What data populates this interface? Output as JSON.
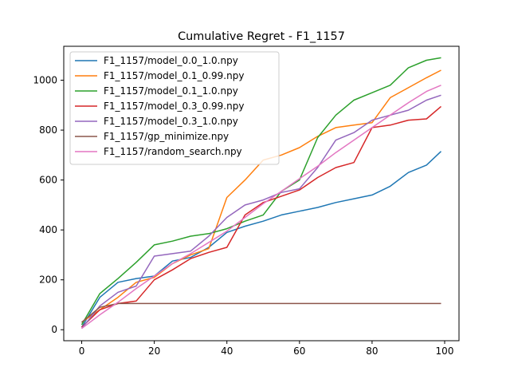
{
  "chart_data": {
    "type": "line",
    "title": "Cumulative Regret - F1_1157",
    "xlabel": "",
    "ylabel": "",
    "xlim": [
      -4.95,
      103.95
    ],
    "ylim": [
      -44,
      1136
    ],
    "xticks": [
      0,
      20,
      40,
      60,
      80,
      100
    ],
    "yticks": [
      0,
      200,
      400,
      600,
      800,
      1000
    ],
    "legend_position": "upper left",
    "grid": false,
    "x": [
      0,
      5,
      10,
      15,
      20,
      25,
      30,
      35,
      40,
      45,
      50,
      55,
      60,
      65,
      70,
      75,
      80,
      85,
      90,
      95,
      99
    ],
    "series": [
      {
        "name": "F1_1157/model_0.0_1.0.npy",
        "color": "#1f77b4",
        "values": [
          10,
          130,
          190,
          205,
          215,
          275,
          290,
          330,
          390,
          415,
          435,
          460,
          475,
          490,
          510,
          525,
          540,
          575,
          630,
          660,
          715
        ]
      },
      {
        "name": "F1_1157/model_0.1_0.99.npy",
        "color": "#ff7f0e",
        "values": [
          30,
          80,
          130,
          190,
          210,
          265,
          300,
          325,
          530,
          600,
          680,
          700,
          730,
          775,
          810,
          820,
          830,
          930,
          970,
          1010,
          1040
        ]
      },
      {
        "name": "F1_1157/model_0.1_1.0.npy",
        "color": "#2ca02c",
        "values": [
          20,
          145,
          205,
          270,
          340,
          355,
          375,
          385,
          405,
          435,
          460,
          555,
          600,
          770,
          860,
          920,
          950,
          980,
          1050,
          1080,
          1090
        ]
      },
      {
        "name": "F1_1157/model_0.3_0.99.npy",
        "color": "#d62728",
        "values": [
          10,
          80,
          105,
          115,
          200,
          240,
          285,
          310,
          330,
          460,
          510,
          535,
          560,
          610,
          650,
          670,
          810,
          820,
          840,
          845,
          895
        ]
      },
      {
        "name": "F1_1157/model_0.3_1.0.npy",
        "color": "#9467bd",
        "values": [
          5,
          95,
          150,
          175,
          295,
          305,
          315,
          375,
          450,
          500,
          520,
          550,
          565,
          650,
          760,
          790,
          840,
          860,
          880,
          920,
          940
        ]
      },
      {
        "name": "F1_1157/gp_minimize.npy",
        "color": "#8c564b",
        "values": [
          30,
          90,
          105,
          105,
          105,
          105,
          105,
          105,
          105,
          105,
          105,
          105,
          105,
          105,
          105,
          105,
          105,
          105,
          105,
          105,
          105
        ]
      },
      {
        "name": "F1_1157/random_search.npy",
        "color": "#e377c2",
        "values": [
          5,
          60,
          110,
          165,
          215,
          265,
          305,
          350,
          395,
          450,
          505,
          555,
          605,
          655,
          710,
          760,
          810,
          860,
          910,
          955,
          980
        ]
      }
    ]
  }
}
